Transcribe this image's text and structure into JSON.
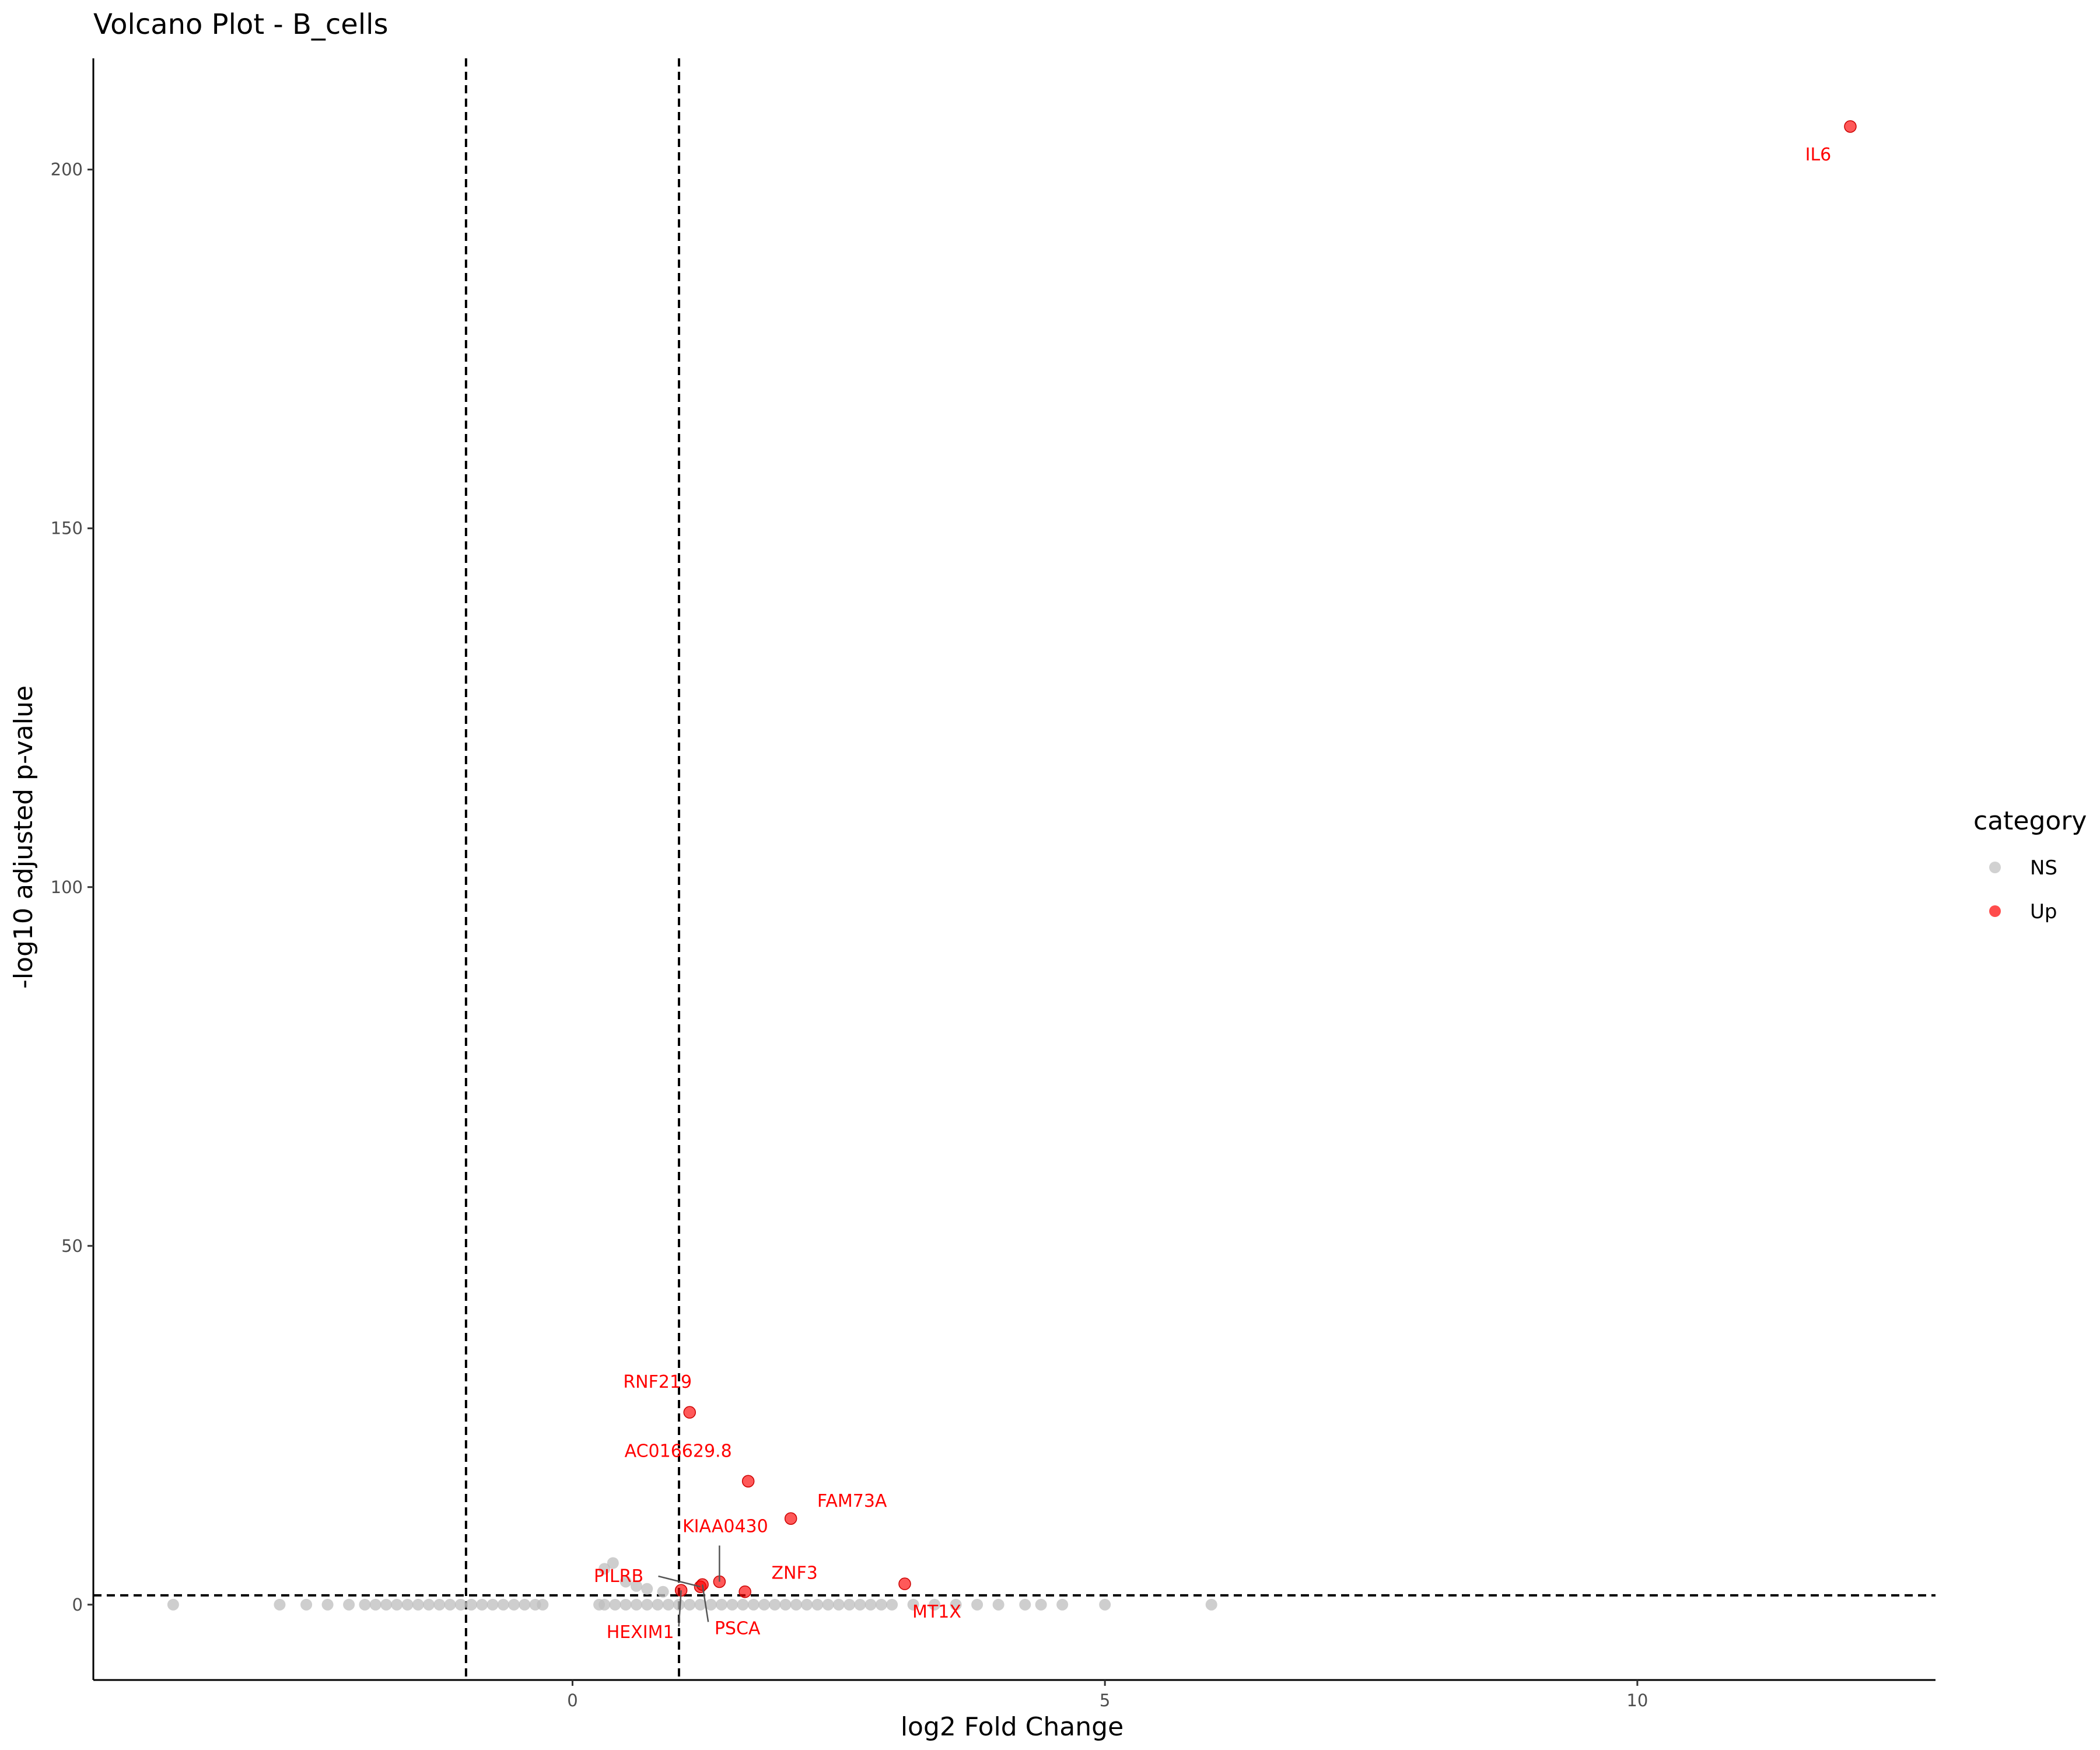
{
  "chart_data": {
    "type": "scatter",
    "title": "Volcano Plot - B_cells",
    "xlabel": "log2 Fold Change",
    "ylabel": "-log10 adjusted p-value",
    "xlim": [
      -4.5,
      12.8
    ],
    "ylim": [
      -10.5,
      215.5
    ],
    "xticks": [
      0,
      5,
      10
    ],
    "yticks": [
      0,
      50,
      100,
      150,
      200
    ],
    "grid": false,
    "thresholds": {
      "log2fc": [
        -1,
        1
      ],
      "neg_log10_padj": 1.3
    },
    "legend": {
      "title": "category",
      "placement": "right",
      "entries": [
        {
          "label": "NS",
          "color": "#bebebe"
        },
        {
          "label": "Up",
          "color": "#ff0000"
        }
      ]
    },
    "series": [
      {
        "name": "NS",
        "color": "#bebebe",
        "points": [
          [
            -3.75,
            0
          ],
          [
            -2.75,
            0
          ],
          [
            -2.5,
            0
          ],
          [
            -2.3,
            0
          ],
          [
            -2.1,
            0
          ],
          [
            -1.95,
            0
          ],
          [
            -1.85,
            0
          ],
          [
            -1.75,
            0
          ],
          [
            -1.65,
            0
          ],
          [
            -1.55,
            0
          ],
          [
            -1.45,
            0
          ],
          [
            -1.35,
            0
          ],
          [
            -1.25,
            0
          ],
          [
            -1.15,
            0
          ],
          [
            -1.05,
            0
          ],
          [
            -0.95,
            0
          ],
          [
            -0.85,
            0
          ],
          [
            -0.75,
            0
          ],
          [
            -0.65,
            0
          ],
          [
            -0.55,
            0
          ],
          [
            -0.45,
            0
          ],
          [
            -0.35,
            0
          ],
          [
            -0.28,
            0
          ],
          [
            0.25,
            0
          ],
          [
            0.3,
            0
          ],
          [
            0.4,
            0
          ],
          [
            0.5,
            0
          ],
          [
            0.6,
            0
          ],
          [
            0.7,
            0
          ],
          [
            0.8,
            0
          ],
          [
            0.9,
            0
          ],
          [
            1.0,
            0
          ],
          [
            1.1,
            0
          ],
          [
            1.2,
            0
          ],
          [
            1.3,
            0
          ],
          [
            1.4,
            0
          ],
          [
            1.5,
            0
          ],
          [
            1.6,
            0
          ],
          [
            1.7,
            0
          ],
          [
            1.8,
            0
          ],
          [
            1.9,
            0
          ],
          [
            2.0,
            0
          ],
          [
            2.1,
            0
          ],
          [
            2.2,
            0
          ],
          [
            2.3,
            0
          ],
          [
            2.4,
            0
          ],
          [
            2.5,
            0
          ],
          [
            2.6,
            0
          ],
          [
            2.7,
            0
          ],
          [
            2.8,
            0
          ],
          [
            2.9,
            0
          ],
          [
            3.0,
            0
          ],
          [
            3.2,
            0
          ],
          [
            3.4,
            0
          ],
          [
            3.6,
            0
          ],
          [
            3.8,
            0
          ],
          [
            4.0,
            0
          ],
          [
            4.25,
            0
          ],
          [
            4.4,
            0
          ],
          [
            4.6,
            0
          ],
          [
            5.0,
            0
          ],
          [
            6.0,
            0
          ],
          [
            0.3,
            5.0
          ],
          [
            0.38,
            5.8
          ],
          [
            0.5,
            3.2
          ],
          [
            0.6,
            2.6
          ],
          [
            0.7,
            2.2
          ],
          [
            0.85,
            1.8
          ]
        ]
      },
      {
        "name": "Up",
        "color": "#ff0000",
        "points": [
          {
            "x": 12.0,
            "y": 206.0,
            "label": "IL6"
          },
          {
            "x": 1.1,
            "y": 26.8,
            "label": "RNF219"
          },
          {
            "x": 1.65,
            "y": 17.2,
            "label": "AC016629.8"
          },
          {
            "x": 2.05,
            "y": 12.0,
            "label": "FAM73A"
          },
          {
            "x": 1.38,
            "y": 3.2,
            "label": "KIAA0430"
          },
          {
            "x": 1.2,
            "y": 2.5,
            "label": "PILRB"
          },
          {
            "x": 1.62,
            "y": 1.8,
            "label": "ZNF3"
          },
          {
            "x": 3.12,
            "y": 2.9,
            "label": "MT1X"
          },
          {
            "x": 1.02,
            "y": 2.0,
            "label": "HEXIM1"
          },
          {
            "x": 1.22,
            "y": 2.8,
            "label": "PSCA"
          }
        ]
      }
    ]
  }
}
